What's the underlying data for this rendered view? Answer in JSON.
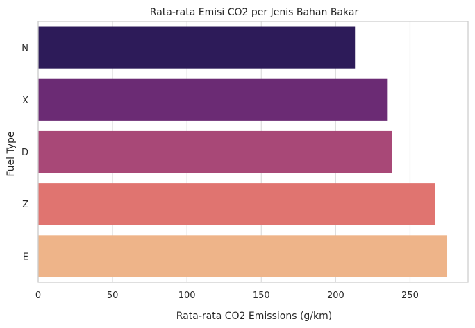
{
  "chart_data": {
    "type": "bar",
    "orientation": "horizontal",
    "title": "Rata-rata Emisi CO2 per Jenis Bahan Bakar",
    "xlabel": "Rata-rata CO2 Emissions (g/km)",
    "ylabel": "Fuel Type",
    "categories": [
      "N",
      "X",
      "D",
      "Z",
      "E"
    ],
    "values": [
      213,
      235,
      238,
      267,
      275
    ],
    "colors": [
      "#2d1b59",
      "#6b2b74",
      "#a84877",
      "#e07470",
      "#eeb489"
    ],
    "xlim": [
      0,
      289
    ],
    "xticks": [
      0,
      50,
      100,
      150,
      200,
      250
    ],
    "grid": "vertical",
    "legend": "none"
  }
}
